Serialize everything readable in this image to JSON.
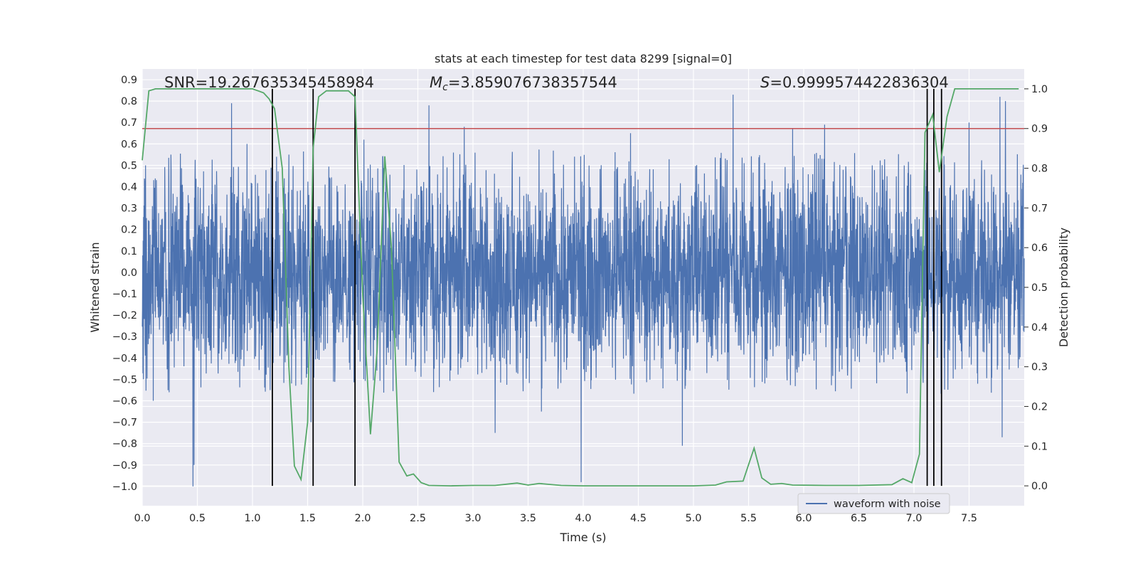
{
  "chart_data": {
    "type": "line",
    "title": "stats at each timestep for test data 8299 [signal=0]",
    "xlabel": "Time (s)",
    "ylabel": "Whitened strain",
    "y2label": "Detection probability",
    "xlim": [
      0.0,
      8.0
    ],
    "ylim": [
      -1.09,
      0.95
    ],
    "y2lim": [
      -0.05,
      1.05
    ],
    "xticks": [
      0.0,
      0.5,
      1.0,
      1.5,
      2.0,
      2.5,
      3.0,
      3.5,
      4.0,
      4.5,
      5.0,
      5.5,
      6.0,
      6.5,
      7.0,
      7.5
    ],
    "xtick_labels": [
      "0.0",
      "0.5",
      "1.0",
      "1.5",
      "2.0",
      "2.5",
      "3.0",
      "3.5",
      "4.0",
      "4.5",
      "5.0",
      "5.5",
      "6.0",
      "6.5",
      "7.0",
      "7.5"
    ],
    "yticks": [
      0.9,
      0.8,
      0.7,
      0.6,
      0.5,
      0.4,
      0.3,
      0.2,
      0.1,
      0.0,
      -0.1,
      -0.2,
      -0.3,
      -0.4,
      -0.5,
      -0.6,
      -0.7,
      -0.8,
      -0.9,
      -1.0
    ],
    "ytick_labels": [
      "0.9",
      "0.8",
      "0.7",
      "0.6",
      "0.5",
      "0.4",
      "0.3",
      "0.2",
      "0.1",
      "0.0",
      "−0.1",
      "−0.2",
      "−0.3",
      "−0.4",
      "−0.5",
      "−0.6",
      "−0.7",
      "−0.8",
      "−0.9",
      "−1.0"
    ],
    "y2ticks": [
      1.0,
      0.9,
      0.8,
      0.7,
      0.6,
      0.5,
      0.4,
      0.3,
      0.2,
      0.1,
      0.0
    ],
    "y2tick_labels": [
      "1.0",
      "0.9",
      "0.8",
      "0.7",
      "0.6",
      "0.5",
      "0.4",
      "0.3",
      "0.2",
      "0.1",
      "0.0"
    ],
    "grid": true,
    "legend_position": "lower-right",
    "annotations": {
      "snr": "SNR=19.267635345458984",
      "mc_symbol": "M",
      "mc_sub": "c",
      "mc_value": "=3.859076738357544",
      "s_symbol": "S",
      "s_value": "=0.9999574422836304"
    },
    "waveform": {
      "name": "waveform with noise",
      "color": "#4c72b0",
      "duration": 8.0,
      "n_samples": 4000,
      "core_amplitude": 0.3,
      "spikes": [
        {
          "t": 0.03,
          "v": 0.5
        },
        {
          "t": 0.1,
          "v": -0.6
        },
        {
          "t": 0.26,
          "v": 0.55
        },
        {
          "t": 0.46,
          "v": -1.0
        },
        {
          "t": 0.47,
          "v": -0.9
        },
        {
          "t": 0.81,
          "v": 0.79
        },
        {
          "t": 0.95,
          "v": 0.6
        },
        {
          "t": 1.16,
          "v": -0.55
        },
        {
          "t": 1.33,
          "v": 0.55
        },
        {
          "t": 1.53,
          "v": -0.7
        },
        {
          "t": 2.01,
          "v": 0.62
        },
        {
          "t": 2.6,
          "v": 0.78
        },
        {
          "t": 2.92,
          "v": 0.68
        },
        {
          "t": 3.2,
          "v": -0.75
        },
        {
          "t": 3.62,
          "v": -0.65
        },
        {
          "t": 3.98,
          "v": -0.98
        },
        {
          "t": 4.43,
          "v": 0.65
        },
        {
          "t": 4.9,
          "v": -0.81
        },
        {
          "t": 5.36,
          "v": 0.83
        },
        {
          "t": 5.9,
          "v": 0.67
        },
        {
          "t": 6.19,
          "v": 0.69
        },
        {
          "t": 7.5,
          "v": 0.7
        },
        {
          "t": 7.78,
          "v": 0.82
        },
        {
          "t": 7.8,
          "v": -0.77
        },
        {
          "t": 7.83,
          "v": 0.8
        }
      ]
    },
    "probability": {
      "color": "#55a868",
      "points": [
        [
          0.0,
          0.82
        ],
        [
          0.06,
          0.995
        ],
        [
          0.12,
          1.0
        ],
        [
          0.5,
          1.0
        ],
        [
          1.0,
          1.0
        ],
        [
          1.05,
          0.995
        ],
        [
          1.1,
          0.99
        ],
        [
          1.15,
          0.975
        ],
        [
          1.2,
          0.95
        ],
        [
          1.27,
          0.8
        ],
        [
          1.33,
          0.3
        ],
        [
          1.38,
          0.05
        ],
        [
          1.44,
          0.016
        ],
        [
          1.5,
          0.16
        ],
        [
          1.55,
          0.85
        ],
        [
          1.6,
          0.98
        ],
        [
          1.67,
          0.995
        ],
        [
          1.73,
          0.995
        ],
        [
          1.8,
          0.995
        ],
        [
          1.87,
          0.995
        ],
        [
          1.93,
          0.98
        ],
        [
          2.0,
          0.48
        ],
        [
          2.07,
          0.13
        ],
        [
          2.13,
          0.34
        ],
        [
          2.2,
          0.83
        ],
        [
          2.26,
          0.6
        ],
        [
          2.33,
          0.06
        ],
        [
          2.4,
          0.025
        ],
        [
          2.46,
          0.03
        ],
        [
          2.53,
          0.008
        ],
        [
          2.6,
          0.001
        ],
        [
          2.8,
          0.0
        ],
        [
          3.0,
          0.001
        ],
        [
          3.2,
          0.001
        ],
        [
          3.4,
          0.007
        ],
        [
          3.5,
          0.002
        ],
        [
          3.6,
          0.006
        ],
        [
          3.8,
          0.001
        ],
        [
          4.0,
          0.0
        ],
        [
          4.5,
          0.0
        ],
        [
          5.0,
          0.0
        ],
        [
          5.2,
          0.002
        ],
        [
          5.3,
          0.01
        ],
        [
          5.45,
          0.012
        ],
        [
          5.55,
          0.095
        ],
        [
          5.62,
          0.02
        ],
        [
          5.7,
          0.004
        ],
        [
          5.8,
          0.006
        ],
        [
          5.9,
          0.002
        ],
        [
          6.2,
          0.001
        ],
        [
          6.5,
          0.001
        ],
        [
          6.8,
          0.003
        ],
        [
          6.9,
          0.018
        ],
        [
          6.98,
          0.008
        ],
        [
          7.05,
          0.08
        ],
        [
          7.1,
          0.89
        ],
        [
          7.17,
          0.935
        ],
        [
          7.23,
          0.79
        ],
        [
          7.3,
          0.93
        ],
        [
          7.37,
          1.0
        ],
        [
          7.5,
          1.0
        ],
        [
          7.7,
          1.0
        ],
        [
          7.95,
          1.0
        ]
      ]
    },
    "threshold": {
      "value": 0.9,
      "color": "#c44e52"
    },
    "markers": [
      1.18,
      1.55,
      1.93,
      7.12,
      7.18,
      7.25
    ],
    "colors": {
      "background": "#eaeaf2",
      "grid": "#ffffff",
      "marker": "#000000",
      "text": "#262626"
    }
  }
}
